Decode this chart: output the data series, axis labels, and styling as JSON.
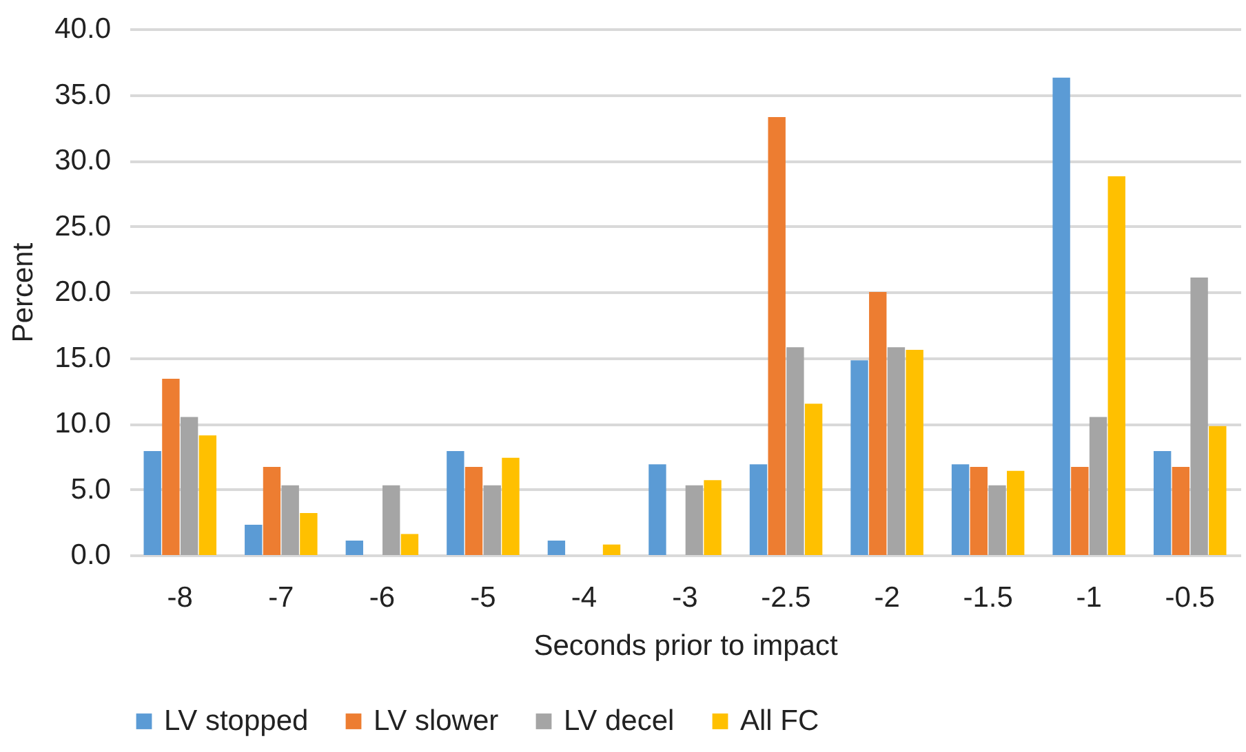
{
  "chart_data": {
    "type": "bar",
    "xlabel": "Seconds prior to impact",
    "ylabel": "Percent",
    "categories": [
      "-8",
      "-7",
      "-6",
      "-5",
      "-4",
      "-3",
      "-2.5",
      "-2",
      "-1.5",
      "-1",
      "-0.5"
    ],
    "series": [
      {
        "name": "LV stopped",
        "color": "#5b9bd5",
        "values": [
          7.9,
          2.3,
          1.1,
          7.9,
          1.1,
          6.9,
          6.9,
          14.8,
          6.9,
          36.3,
          7.9
        ]
      },
      {
        "name": "LV slower",
        "color": "#ed7d31",
        "values": [
          13.4,
          6.7,
          0,
          6.7,
          0,
          0,
          33.3,
          20.0,
          6.7,
          6.7,
          6.7
        ]
      },
      {
        "name": "LV decel",
        "color": "#a5a5a5",
        "values": [
          10.5,
          5.3,
          5.3,
          5.3,
          0,
          5.3,
          15.8,
          15.8,
          5.3,
          10.5,
          21.1
        ]
      },
      {
        "name": "All FC",
        "color": "#ffc000",
        "values": [
          9.1,
          3.2,
          1.6,
          7.4,
          0.8,
          5.7,
          11.5,
          15.6,
          6.4,
          28.8,
          9.8
        ]
      }
    ],
    "ylim": [
      0,
      40
    ],
    "yticks": [
      {
        "value": 0,
        "label": "0.0"
      },
      {
        "value": 5,
        "label": "5.0"
      },
      {
        "value": 10,
        "label": "10.0"
      },
      {
        "value": 15,
        "label": "15.0"
      },
      {
        "value": 20,
        "label": "20.0"
      },
      {
        "value": 25,
        "label": "25.0"
      },
      {
        "value": 30,
        "label": "30.0"
      },
      {
        "value": 35,
        "label": "35.0"
      },
      {
        "value": 40,
        "label": "40.0"
      }
    ],
    "grid": "y",
    "legend": "bottom"
  }
}
